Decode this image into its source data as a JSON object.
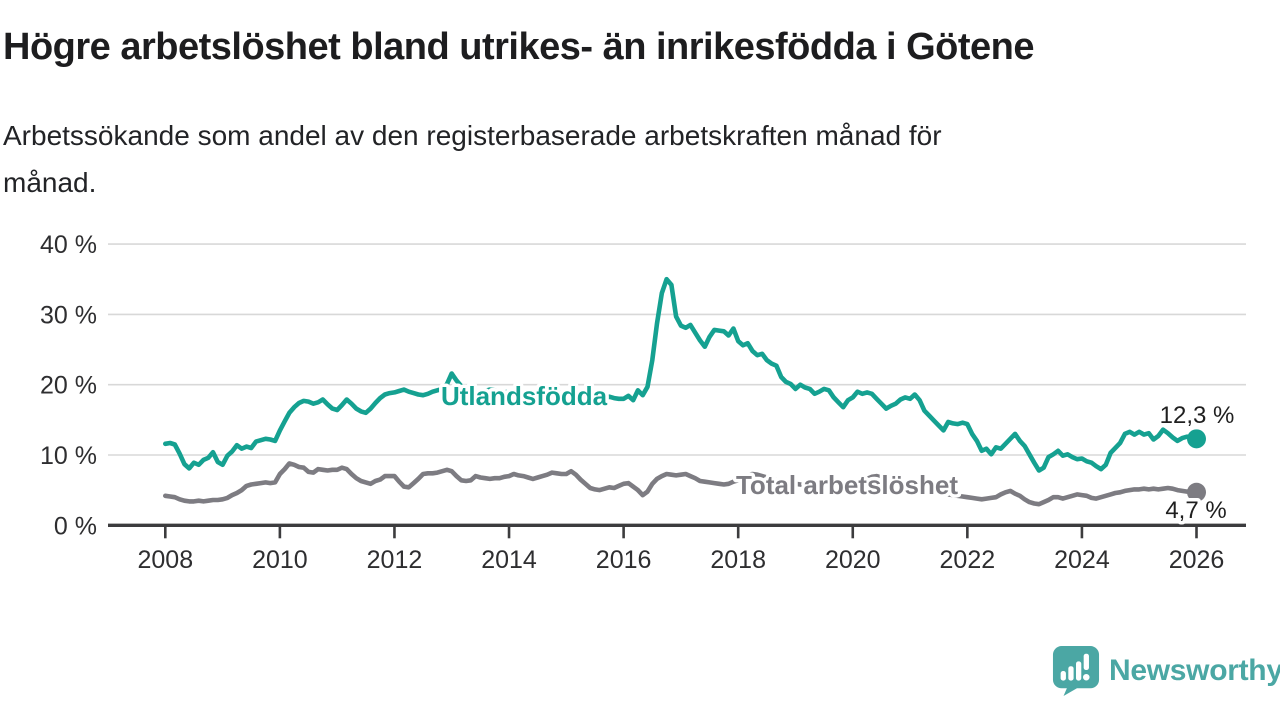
{
  "header": {
    "title": "Högre arbetslöshet bland utrikes- än inrikesfödda i Götene",
    "subtitle_line1": "Arbetssökande som andel av den registerbaserade arbetskraften månad för",
    "subtitle_line2": "månad."
  },
  "footer": {
    "brand": "Newsworthy",
    "logo_icon": "speech-bubble-bar-chart-icon"
  },
  "colors": {
    "foreign_born_line": "#15a191",
    "total_line": "#7d7c82",
    "axis": "#3c3c3e",
    "gridline": "#d8d8d8",
    "text": "#1f1f1f",
    "brand_teal": "#4ba7a4"
  },
  "chart_data": {
    "type": "line",
    "title": "Högre arbetslöshet bland utrikes- än inrikesfödda i Götene",
    "subtitle": "Arbetssökande som andel av den registerbaserade arbetskraften månad för månad.",
    "x": {
      "start": "2008-01",
      "end": "2026-01",
      "frequency": "monthly"
    },
    "x_tick_labels": [
      "2008",
      "2010",
      "2012",
      "2014",
      "2016",
      "2018",
      "2020",
      "2022",
      "2024",
      "2026"
    ],
    "y_ticks": [
      0,
      10,
      20,
      30,
      40
    ],
    "y_tick_labels": [
      "0 %",
      "10 %",
      "20 %",
      "30 %",
      "40 %"
    ],
    "ylim": [
      0,
      40
    ],
    "xlim_years": [
      2008,
      2026
    ],
    "grid": "horizontal",
    "legend_position": "inline-labels",
    "series": [
      {
        "name": "Utlandsfödda",
        "color": "#15a191",
        "end_value": 12.3,
        "end_label": "12,3 %",
        "values": [
          11.6,
          11.7,
          11.5,
          10.2,
          8.7,
          8.1,
          8.9,
          8.6,
          9.3,
          9.6,
          10.4,
          9.0,
          8.6,
          9.9,
          10.5,
          11.4,
          10.9,
          11.2,
          11.0,
          11.9,
          12.1,
          12.3,
          12.2,
          12.0,
          13.5,
          14.8,
          16.0,
          16.8,
          17.4,
          17.7,
          17.6,
          17.3,
          17.5,
          17.9,
          17.2,
          16.6,
          16.4,
          17.1,
          17.9,
          17.3,
          16.6,
          16.2,
          16.0,
          16.6,
          17.4,
          18.1,
          18.6,
          18.8,
          18.9,
          19.1,
          19.3,
          19.0,
          18.8,
          18.6,
          18.5,
          18.7,
          19.0,
          19.2,
          19.4,
          20.1,
          21.6,
          20.6,
          19.8,
          19.3,
          19.0,
          18.8,
          18.9,
          19.1,
          19.3,
          19.2,
          19.0,
          18.9,
          19.0,
          19.2,
          19.1,
          18.9,
          18.7,
          18.5,
          18.6,
          18.8,
          19.0,
          19.1,
          18.9,
          18.8,
          18.9,
          19.0,
          18.8,
          18.6,
          18.4,
          18.2,
          18.0,
          17.6,
          18.0,
          18.3,
          18.1,
          18.0,
          18.0,
          18.4,
          17.8,
          19.2,
          18.5,
          19.7,
          23.5,
          28.7,
          33.0,
          35.0,
          34.2,
          29.7,
          28.4,
          28.1,
          28.5,
          27.4,
          26.3,
          25.4,
          26.8,
          27.8,
          27.7,
          27.6,
          27.0,
          28.0,
          26.2,
          25.6,
          25.9,
          24.8,
          24.2,
          24.4,
          23.5,
          23.0,
          22.7,
          21.1,
          20.4,
          20.1,
          19.4,
          20.0,
          19.6,
          19.4,
          18.7,
          19.0,
          19.4,
          19.2,
          18.2,
          17.5,
          16.8,
          17.8,
          18.2,
          19.0,
          18.7,
          18.9,
          18.7,
          18.0,
          17.3,
          16.6,
          17.0,
          17.3,
          17.9,
          18.2,
          18.0,
          18.6,
          17.8,
          16.3,
          15.6,
          14.9,
          14.2,
          13.5,
          14.7,
          14.5,
          14.4,
          14.6,
          14.4,
          13.0,
          12.0,
          10.6,
          10.9,
          10.1,
          11.1,
          10.9,
          11.6,
          12.3,
          13.0,
          12.0,
          11.3,
          10.1,
          8.9,
          7.8,
          8.2,
          9.7,
          10.1,
          10.6,
          9.9,
          10.1,
          9.7,
          9.4,
          9.5,
          9.1,
          8.9,
          8.4,
          8.0,
          8.6,
          10.3,
          11.0,
          11.7,
          13.0,
          13.3,
          12.9,
          13.3,
          12.9,
          13.1,
          12.2,
          12.7,
          13.6,
          13.1,
          12.5,
          12.0,
          12.4,
          12.6,
          12.5,
          12.3
        ]
      },
      {
        "name": "Total arbetslöshet",
        "color": "#7d7c82",
        "end_value": 4.7,
        "end_label": "4,7 %",
        "values": [
          4.2,
          4.1,
          4.0,
          3.7,
          3.5,
          3.4,
          3.4,
          3.5,
          3.4,
          3.5,
          3.6,
          3.6,
          3.7,
          3.9,
          4.3,
          4.6,
          5.0,
          5.6,
          5.8,
          5.9,
          6.0,
          6.1,
          6.0,
          6.1,
          7.3,
          8.0,
          8.8,
          8.6,
          8.3,
          8.2,
          7.6,
          7.5,
          8.0,
          7.9,
          7.8,
          7.9,
          7.9,
          8.2,
          8.0,
          7.3,
          6.7,
          6.3,
          6.1,
          5.9,
          6.3,
          6.5,
          7.0,
          7.0,
          7.0,
          6.2,
          5.5,
          5.4,
          6.0,
          6.6,
          7.3,
          7.4,
          7.4,
          7.5,
          7.7,
          7.9,
          7.7,
          7.0,
          6.4,
          6.3,
          6.4,
          7.0,
          6.8,
          6.7,
          6.6,
          6.7,
          6.7,
          6.9,
          7.0,
          7.3,
          7.1,
          7.0,
          6.8,
          6.6,
          6.8,
          7.0,
          7.2,
          7.5,
          7.4,
          7.3,
          7.3,
          7.7,
          7.2,
          6.5,
          5.9,
          5.3,
          5.1,
          5.0,
          5.2,
          5.4,
          5.3,
          5.6,
          5.9,
          6.0,
          5.5,
          5.0,
          4.3,
          4.8,
          5.9,
          6.6,
          7.0,
          7.3,
          7.2,
          7.1,
          7.2,
          7.3,
          7.0,
          6.7,
          6.3,
          6.2,
          6.1,
          6.0,
          5.9,
          5.8,
          5.9,
          6.2,
          6.4,
          6.8,
          7.1,
          7.3,
          7.2,
          7.0,
          6.8,
          6.6,
          6.4,
          6.2,
          6.1,
          6.0,
          5.9,
          5.8,
          5.7,
          5.6,
          5.5,
          5.4,
          5.5,
          5.4,
          5.3,
          5.2,
          5.3,
          5.4,
          5.5,
          5.6,
          6.0,
          6.6,
          6.9,
          7.0,
          6.8,
          6.6,
          6.4,
          6.2,
          6.0,
          5.9,
          5.8,
          5.7,
          5.5,
          5.3,
          5.1,
          4.9,
          4.7,
          4.5,
          4.4,
          4.3,
          4.2,
          4.1,
          4.0,
          3.9,
          3.8,
          3.7,
          3.8,
          3.9,
          4.0,
          4.4,
          4.7,
          4.9,
          4.5,
          4.2,
          3.7,
          3.3,
          3.1,
          3.0,
          3.3,
          3.6,
          4.0,
          4.0,
          3.8,
          4.0,
          4.2,
          4.4,
          4.3,
          4.2,
          3.9,
          3.8,
          4.0,
          4.2,
          4.4,
          4.6,
          4.7,
          4.9,
          5.0,
          5.1,
          5.1,
          5.2,
          5.1,
          5.2,
          5.1,
          5.2,
          5.3,
          5.2,
          5.0,
          4.9,
          4.8,
          4.8,
          4.7
        ]
      }
    ]
  }
}
